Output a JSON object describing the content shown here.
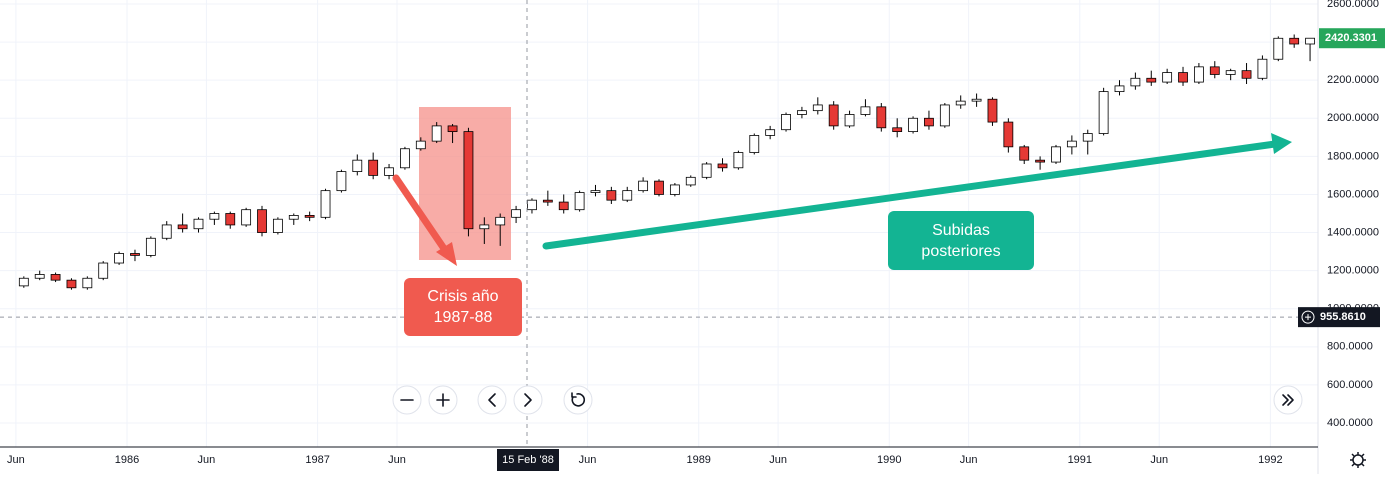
{
  "chart_data": {
    "type": "candlestick",
    "x": [
      "1985-06",
      "1985-07",
      "1985-08",
      "1985-09",
      "1985-10",
      "1985-11",
      "1985-12",
      "1986-01",
      "1986-02",
      "1986-03",
      "1986-04",
      "1986-05",
      "1986-06",
      "1986-07",
      "1986-08",
      "1986-09",
      "1986-10",
      "1986-11",
      "1986-12",
      "1987-01",
      "1987-02",
      "1987-03",
      "1987-04",
      "1987-05",
      "1987-06",
      "1987-07",
      "1987-08",
      "1987-09",
      "1987-10",
      "1987-11",
      "1987-12",
      "1988-01",
      "1988-02",
      "1988-03",
      "1988-04",
      "1988-05",
      "1988-06",
      "1988-07",
      "1988-08",
      "1988-09",
      "1988-10",
      "1988-11",
      "1988-12",
      "1989-01",
      "1989-02",
      "1989-03",
      "1989-04",
      "1989-05",
      "1989-06",
      "1989-07",
      "1989-08",
      "1989-09",
      "1989-10",
      "1989-11",
      "1989-12",
      "1990-01",
      "1990-02",
      "1990-03",
      "1990-04",
      "1990-05",
      "1990-06",
      "1990-07",
      "1990-08",
      "1990-09",
      "1990-10",
      "1990-11",
      "1990-12",
      "1991-01",
      "1991-02",
      "1991-03",
      "1991-04",
      "1991-05",
      "1991-06",
      "1991-07",
      "1991-08",
      "1991-09",
      "1991-10",
      "1991-11",
      "1991-12",
      "1992-01",
      "1992-02",
      "1992-03"
    ],
    "open": [
      1120,
      1160,
      1180,
      1150,
      1110,
      1160,
      1240,
      1290,
      1280,
      1370,
      1440,
      1420,
      1470,
      1500,
      1440,
      1520,
      1400,
      1470,
      1490,
      1480,
      1620,
      1720,
      1780,
      1700,
      1740,
      1840,
      1880,
      1960,
      1930,
      1420,
      1440,
      1480,
      1520,
      1570,
      1560,
      1520,
      1610,
      1620,
      1570,
      1620,
      1670,
      1600,
      1650,
      1690,
      1760,
      1740,
      1820,
      1910,
      1940,
      2020,
      2040,
      2070,
      1960,
      2020,
      2060,
      1950,
      1930,
      2000,
      1960,
      2070,
      2090,
      2100,
      1980,
      1850,
      1780,
      1770,
      1850,
      1880,
      1920,
      2140,
      2170,
      2210,
      2190,
      2240,
      2190,
      2270,
      2230,
      2250,
      2210,
      2310,
      2420,
      2390
    ],
    "high": [
      1170,
      1200,
      1190,
      1160,
      1170,
      1250,
      1300,
      1310,
      1380,
      1460,
      1500,
      1480,
      1510,
      1510,
      1530,
      1540,
      1480,
      1500,
      1510,
      1630,
      1730,
      1810,
      1820,
      1760,
      1850,
      1900,
      1980,
      1970,
      1950,
      1480,
      1500,
      1540,
      1580,
      1620,
      1600,
      1620,
      1650,
      1640,
      1640,
      1690,
      1680,
      1660,
      1700,
      1770,
      1790,
      1830,
      1920,
      1960,
      2030,
      2060,
      2110,
      2090,
      2040,
      2100,
      2080,
      2000,
      2010,
      2040,
      2080,
      2120,
      2130,
      2110,
      2000,
      1860,
      1800,
      1860,
      1910,
      1940,
      2160,
      2200,
      2240,
      2250,
      2260,
      2270,
      2290,
      2300,
      2260,
      2290,
      2330,
      2430,
      2440,
      2420
    ],
    "low": [
      1110,
      1150,
      1140,
      1100,
      1100,
      1150,
      1230,
      1250,
      1270,
      1360,
      1400,
      1400,
      1440,
      1420,
      1430,
      1380,
      1390,
      1440,
      1460,
      1470,
      1610,
      1700,
      1680,
      1680,
      1730,
      1830,
      1870,
      1870,
      1380,
      1340,
      1330,
      1450,
      1500,
      1540,
      1500,
      1510,
      1590,
      1550,
      1560,
      1610,
      1590,
      1590,
      1640,
      1680,
      1720,
      1730,
      1810,
      1890,
      1930,
      2000,
      2020,
      1940,
      1950,
      2010,
      1930,
      1900,
      1920,
      1940,
      1950,
      2050,
      2060,
      1960,
      1820,
      1760,
      1730,
      1760,
      1810,
      1810,
      1910,
      2120,
      2150,
      2170,
      2180,
      2170,
      2180,
      2210,
      2200,
      2180,
      2200,
      2300,
      2370,
      2300
    ],
    "close": [
      1160,
      1180,
      1150,
      1110,
      1160,
      1240,
      1290,
      1280,
      1370,
      1440,
      1420,
      1470,
      1500,
      1440,
      1520,
      1400,
      1470,
      1490,
      1480,
      1620,
      1720,
      1780,
      1700,
      1740,
      1840,
      1880,
      1960,
      1930,
      1420,
      1440,
      1480,
      1520,
      1570,
      1560,
      1520,
      1610,
      1620,
      1570,
      1620,
      1670,
      1600,
      1650,
      1690,
      1760,
      1740,
      1820,
      1910,
      1940,
      2020,
      2040,
      2070,
      1960,
      2020,
      2060,
      1950,
      1930,
      2000,
      1960,
      2070,
      2090,
      2100,
      1980,
      1850,
      1780,
      1770,
      1850,
      1880,
      1920,
      2140,
      2170,
      2210,
      2190,
      2240,
      2190,
      2270,
      2230,
      2250,
      2210,
      2310,
      2420,
      2390,
      2420.3301
    ],
    "up_color": "#ffffff",
    "down_color": "#e53935",
    "wick_color": "#000000",
    "xlim": [
      "1985-05",
      "1992-04"
    ],
    "xticks": [
      {
        "value": "1985-06",
        "label": "Jun"
      },
      {
        "value": "1986-01",
        "label": "1986"
      },
      {
        "value": "1986-06",
        "label": "Jun"
      },
      {
        "value": "1987-01",
        "label": "1987"
      },
      {
        "value": "1987-06",
        "label": "Jun"
      },
      {
        "value": "1988-06",
        "label": "Jun"
      },
      {
        "value": "1989-01",
        "label": "1989"
      },
      {
        "value": "1989-06",
        "label": "Jun"
      },
      {
        "value": "1990-01",
        "label": "1990"
      },
      {
        "value": "1990-06",
        "label": "Jun"
      },
      {
        "value": "1991-01",
        "label": "1991"
      },
      {
        "value": "1991-06",
        "label": "Jun"
      },
      {
        "value": "1992-01",
        "label": "1992"
      }
    ],
    "ylim": [
      274,
      2621
    ],
    "yticks": [
      {
        "value": 400,
        "label": "400.0000"
      },
      {
        "value": 600,
        "label": "600.0000"
      },
      {
        "value": 800,
        "label": "800.0000"
      },
      {
        "value": 1000,
        "label": "1000.0000"
      },
      {
        "value": 1200,
        "label": "1200.0000"
      },
      {
        "value": 1400,
        "label": "1400.0000"
      },
      {
        "value": 1600,
        "label": "1600.0000"
      },
      {
        "value": 1800,
        "label": "1800.0000"
      },
      {
        "value": 2000,
        "label": "2000.0000"
      },
      {
        "value": 2200,
        "label": "2200.0000"
      },
      {
        "value": 2400,
        "label": "2400.0000"
      },
      {
        "value": 2600,
        "label": "2600.0000"
      }
    ],
    "grid": true,
    "last_price": 2420.3301,
    "last_price_color": "#26a65b",
    "crosshair": {
      "x_label": "15 Feb '88",
      "y": {
        "value": 955.861,
        "label": "955.8610"
      }
    },
    "annotations": {
      "crisis": [
        "Crisis año",
        "1987-88"
      ],
      "rise": [
        "Subidas",
        "posteriores"
      ]
    }
  }
}
